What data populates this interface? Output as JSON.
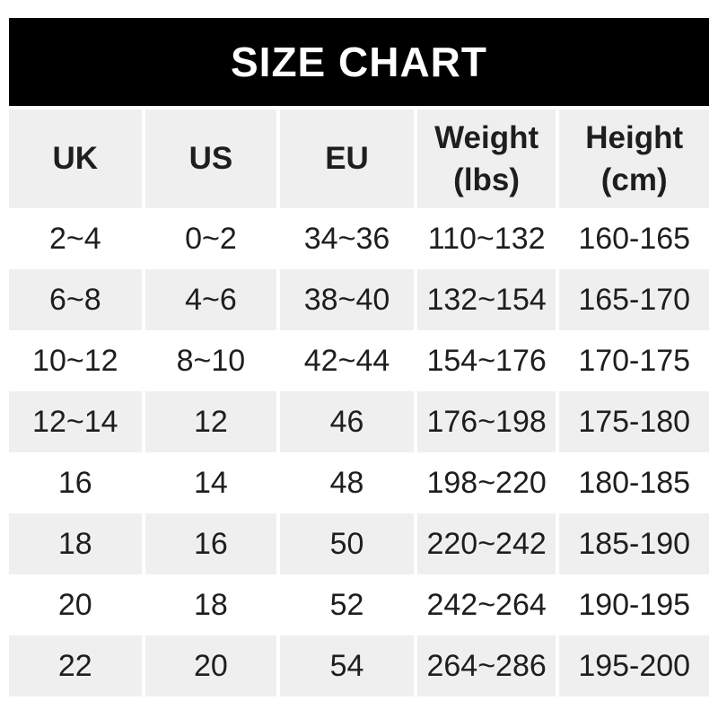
{
  "banner": {
    "title": "SIZE CHART",
    "background": "#000000",
    "text_color": "#ffffff"
  },
  "colors": {
    "shaded_row": "#f0eff0",
    "base_row": "#ffffff",
    "text": "#1e1e1e"
  },
  "chart_data": {
    "type": "table",
    "title": "SIZE CHART",
    "columns": [
      {
        "label": "UK",
        "sublabel": ""
      },
      {
        "label": "US",
        "sublabel": ""
      },
      {
        "label": "EU",
        "sublabel": ""
      },
      {
        "label": "Weight",
        "sublabel": "(lbs)"
      },
      {
        "label": "Height",
        "sublabel": "(cm)"
      }
    ],
    "rows": [
      [
        "2~4",
        "0~2",
        "34~36",
        "110~132",
        "160-165"
      ],
      [
        "6~8",
        "4~6",
        "38~40",
        "132~154",
        "165-170"
      ],
      [
        "10~12",
        "8~10",
        "42~44",
        "154~176",
        "170-175"
      ],
      [
        "12~14",
        "12",
        "46",
        "176~198",
        "175-180"
      ],
      [
        "16",
        "14",
        "48",
        "198~220",
        "180-185"
      ],
      [
        "18",
        "16",
        "50",
        "220~242",
        "185-190"
      ],
      [
        "20",
        "18",
        "52",
        "242~264",
        "190-195"
      ],
      [
        "22",
        "20",
        "54",
        "264~286",
        "195-200"
      ]
    ],
    "layout": {
      "header_shaded": true,
      "alternating_rows": "white-then-gray",
      "grid_lines": "none"
    }
  }
}
